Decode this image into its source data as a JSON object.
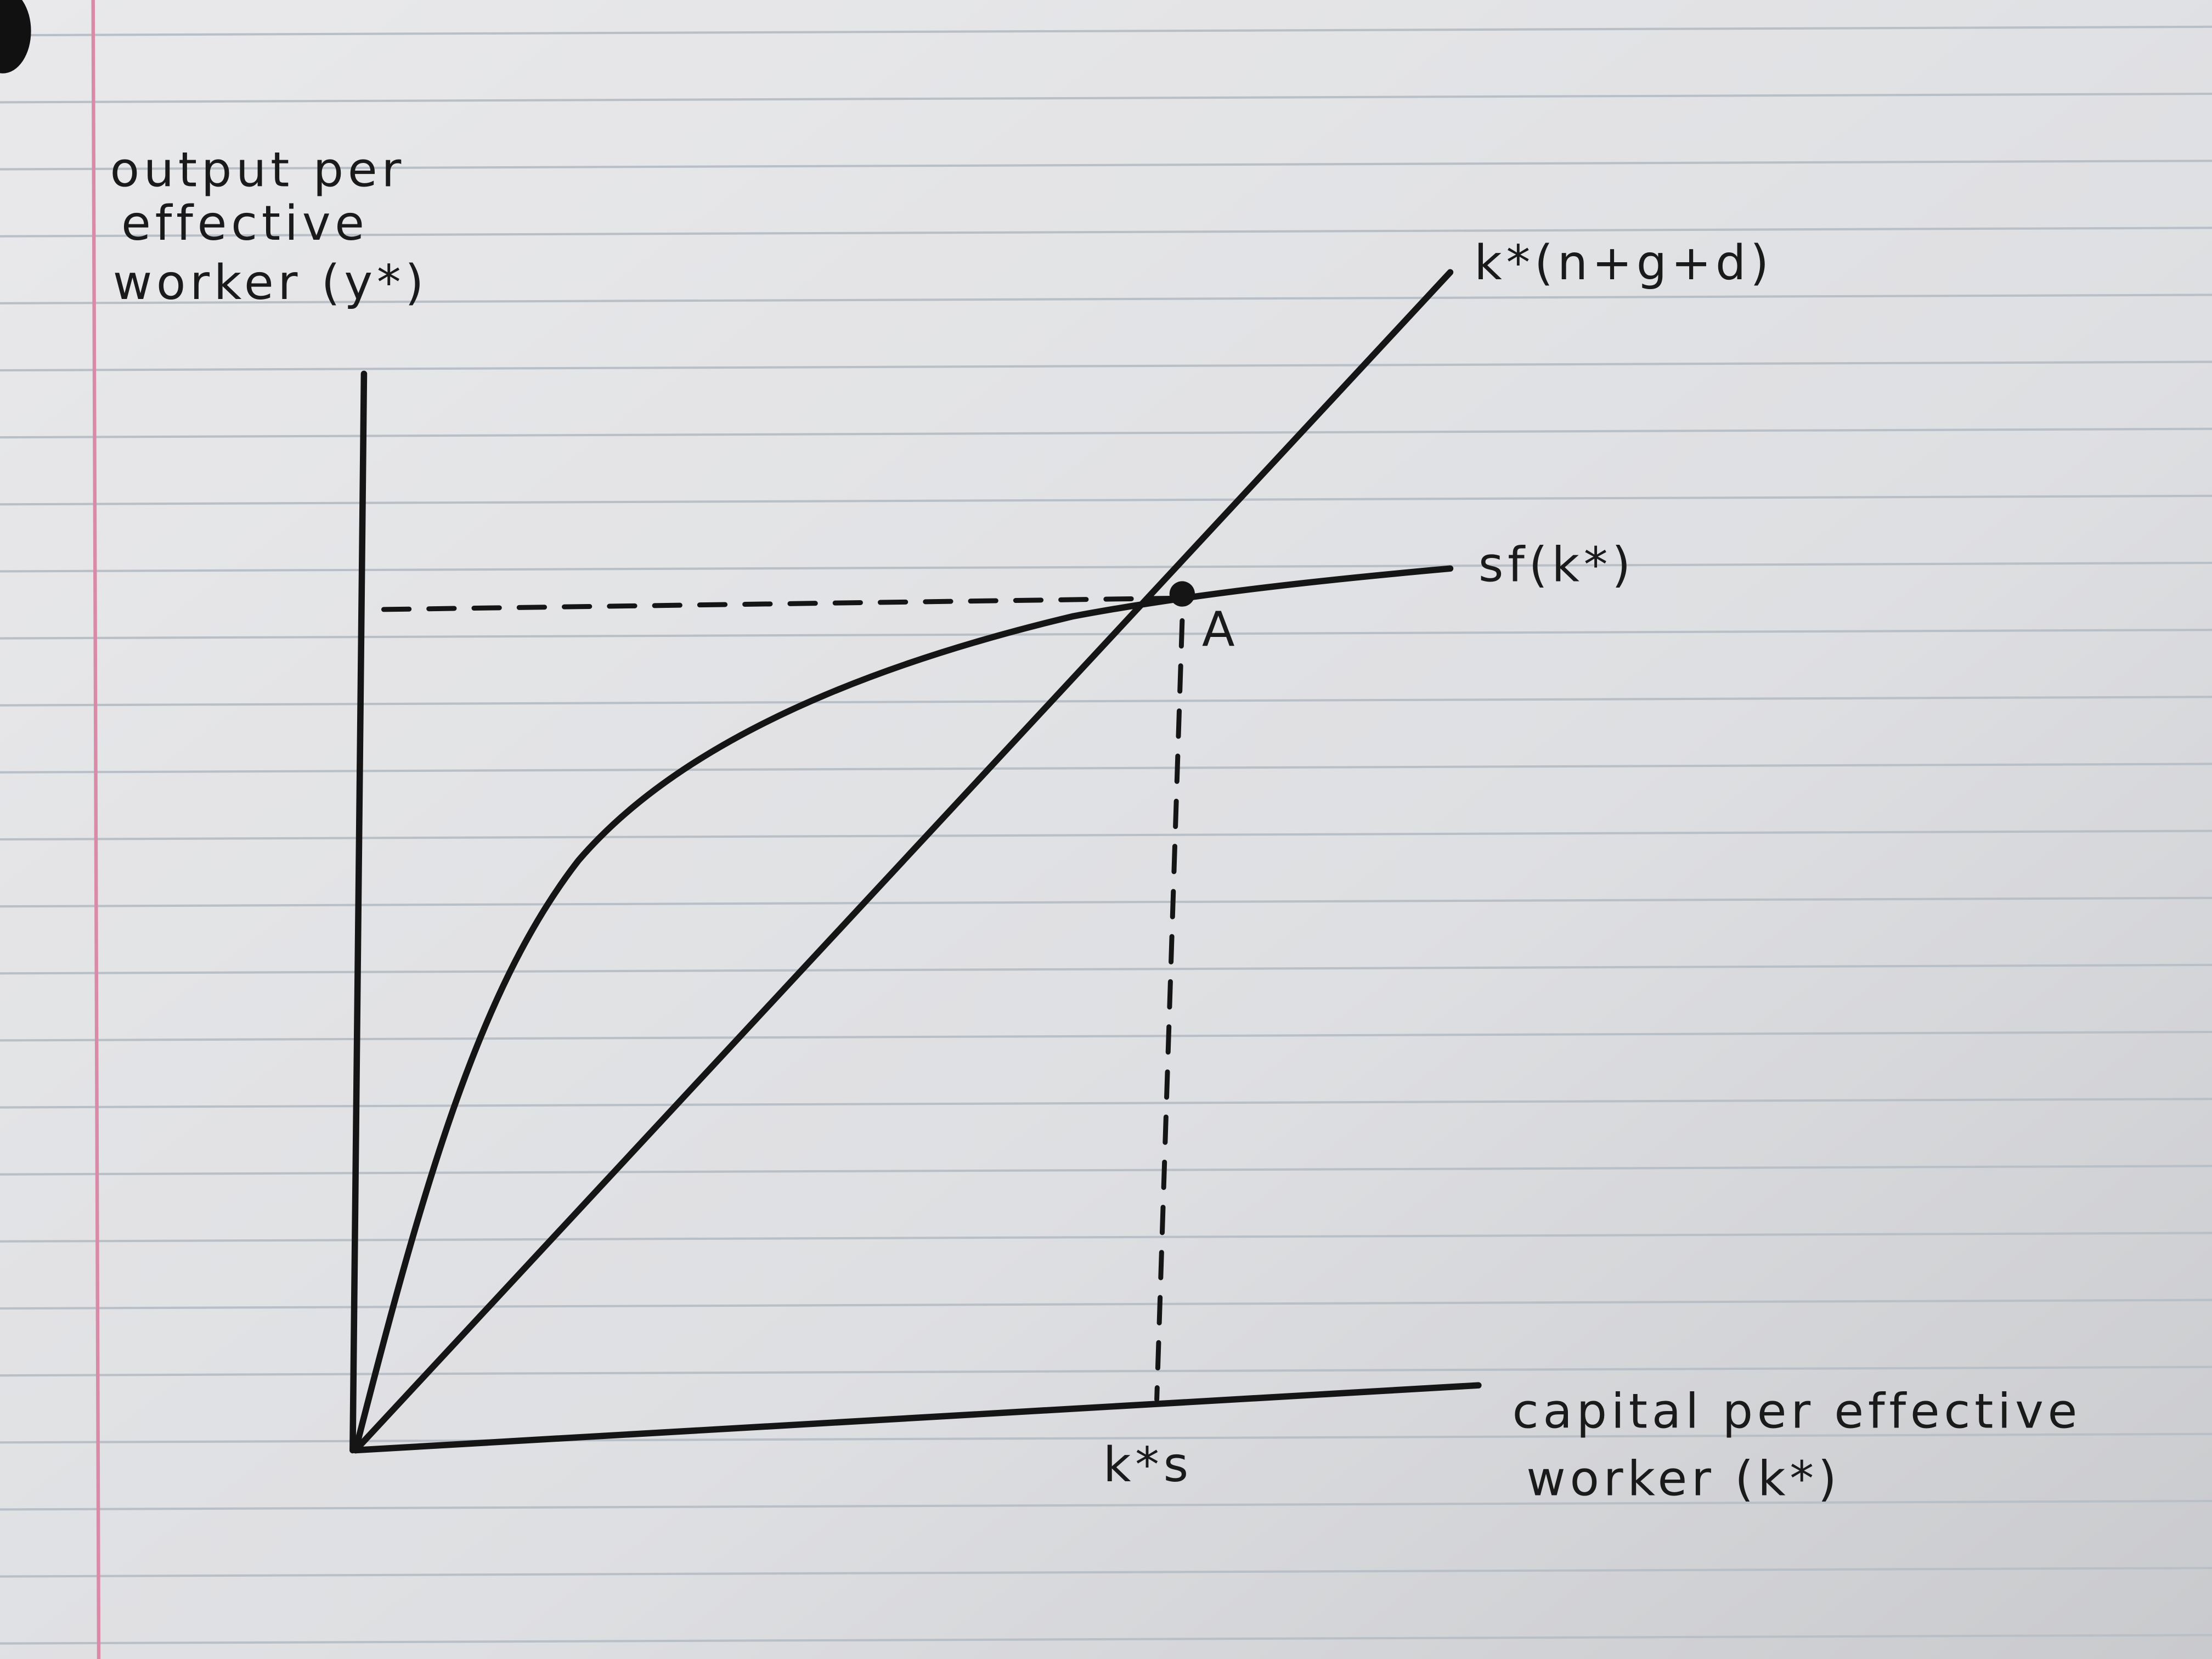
{
  "y_axis_label": {
    "lines": [
      "output per",
      "effective",
      "worker (y*)"
    ]
  },
  "x_axis_label": {
    "lines": [
      "capital per effective",
      "worker (k*)"
    ]
  },
  "curves": {
    "line_label": "k*(n+g+d)",
    "curve_label": "sf(k*)"
  },
  "point": {
    "label": "A"
  },
  "x_marker": {
    "label": "k*s"
  }
}
